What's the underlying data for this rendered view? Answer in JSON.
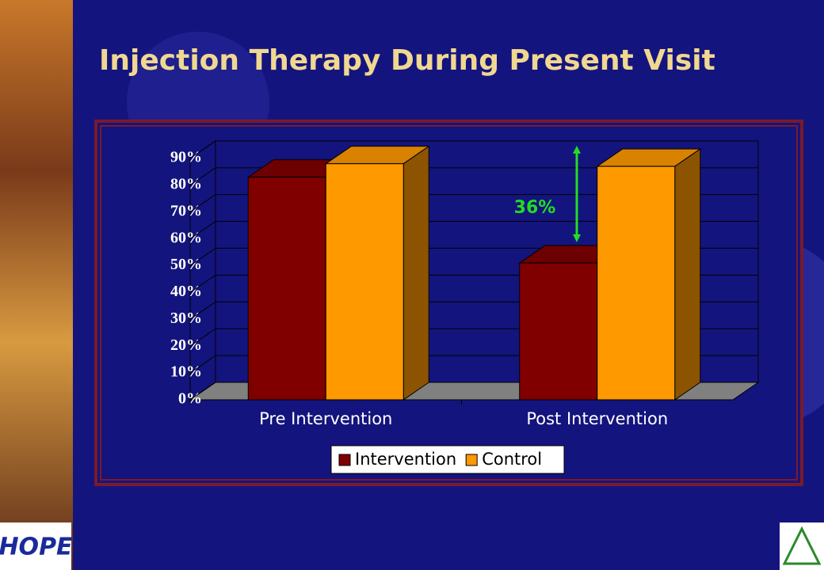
{
  "chart_data": {
    "type": "bar3d",
    "title": "Injection Therapy During Present Visit",
    "categories": [
      "Pre Intervention",
      "Post Intervention"
    ],
    "series": [
      {
        "name": "Intervention",
        "color": "#800000",
        "values": [
          83,
          51
        ]
      },
      {
        "name": "Control",
        "color": "#ff9900",
        "values": [
          88,
          87
        ]
      }
    ],
    "ylim": [
      0,
      90
    ],
    "yticks": [
      {
        "value": 0,
        "label": "0%"
      },
      {
        "value": 10,
        "label": "10%"
      },
      {
        "value": 20,
        "label": "20%"
      },
      {
        "value": 30,
        "label": "30%"
      },
      {
        "value": 40,
        "label": "40%"
      },
      {
        "value": 50,
        "label": "50%"
      },
      {
        "value": 60,
        "label": "60%"
      },
      {
        "value": 70,
        "label": "70%"
      },
      {
        "value": 80,
        "label": "80%"
      },
      {
        "value": 90,
        "label": "90%"
      }
    ],
    "grid": true,
    "legend": "bottom",
    "annotation": "36%"
  },
  "logo_text": "HOPE"
}
